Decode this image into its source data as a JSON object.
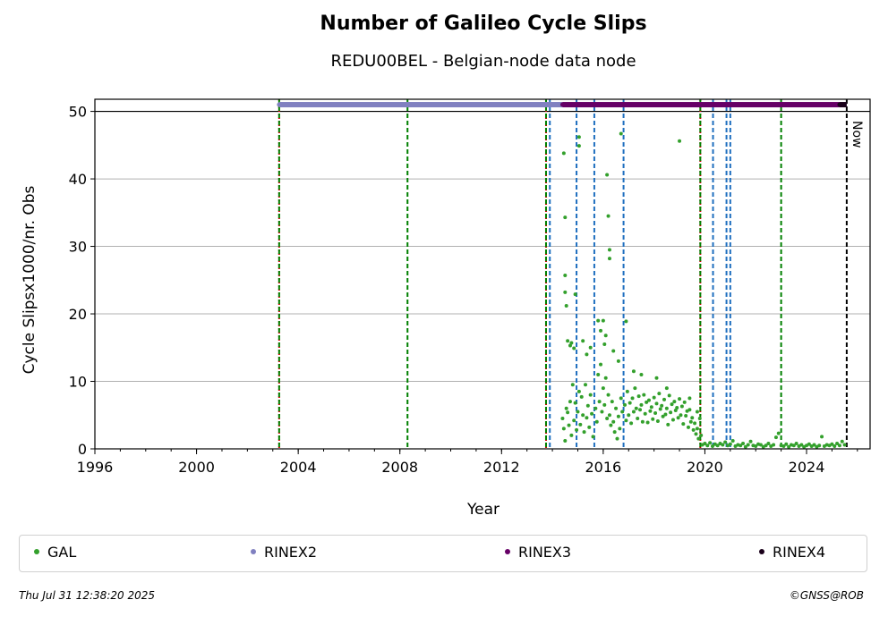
{
  "chart_data": {
    "type": "scatter",
    "title": "Number of Galileo Cycle Slips",
    "subtitle": "REDU00BEL - Belgian-node data node",
    "xlabel": "Year",
    "ylabel": "Cycle Slipsx1000/nr. Obs",
    "xlim": [
      1996,
      2026.5
    ],
    "ylim": [
      0,
      51.8
    ],
    "x_ticks": [
      1996,
      2000,
      2004,
      2008,
      2012,
      2016,
      2020,
      2024
    ],
    "y_ticks": [
      0,
      10,
      20,
      30,
      40,
      50
    ],
    "grid": "horizontal",
    "reference_line_y": 50,
    "now_label": "Now",
    "now_x": 2025.58,
    "vertical_lines": [
      {
        "x": 2003.25,
        "color": "#cc0000",
        "style": "dotted"
      },
      {
        "x": 2003.25,
        "color": "#008000",
        "style": "dashed"
      },
      {
        "x": 2008.3,
        "color": "#008000",
        "style": "dashed"
      },
      {
        "x": 2013.75,
        "color": "#cc0000",
        "style": "dotted"
      },
      {
        "x": 2013.75,
        "color": "#008000",
        "style": "dashed"
      },
      {
        "x": 2013.9,
        "color": "#1f6fbf",
        "style": "dashed"
      },
      {
        "x": 2014.95,
        "color": "#1f6fbf",
        "style": "dashed"
      },
      {
        "x": 2015.65,
        "color": "#1f6fbf",
        "style": "dashed"
      },
      {
        "x": 2016.8,
        "color": "#1f6fbf",
        "style": "dashed"
      },
      {
        "x": 2019.82,
        "color": "#cc0000",
        "style": "dotted"
      },
      {
        "x": 2019.82,
        "color": "#008000",
        "style": "dashed"
      },
      {
        "x": 2020.32,
        "color": "#1f6fbf",
        "style": "dashed"
      },
      {
        "x": 2020.85,
        "color": "#1f6fbf",
        "style": "dashed"
      },
      {
        "x": 2021.0,
        "color": "#1f6fbf",
        "style": "dashed"
      },
      {
        "x": 2023.0,
        "color": "#008000",
        "style": "dashed"
      }
    ],
    "format_periods": [
      {
        "name": "RINEX2",
        "x_start": 2003.25,
        "x_end": 2014.4,
        "y": 51,
        "color": "#8080c0"
      },
      {
        "name": "RINEX3",
        "x_start": 2014.4,
        "x_end": 2025.3,
        "y": 51,
        "color": "#660066"
      },
      {
        "name": "RINEX4",
        "x_start": 2025.3,
        "x_end": 2025.58,
        "y": 51,
        "color": "#1a001a"
      }
    ],
    "series": [
      {
        "name": "GAL",
        "color": "#33a02c",
        "points": [
          [
            2014.45,
            43.8
          ],
          [
            2014.5,
            34.3
          ],
          [
            2014.5,
            25.7
          ],
          [
            2014.5,
            23.2
          ],
          [
            2014.55,
            21.2
          ],
          [
            2014.6,
            16.0
          ],
          [
            2014.7,
            15.3
          ],
          [
            2014.75,
            15.7
          ],
          [
            2014.85,
            14.9
          ],
          [
            2014.9,
            22.9
          ],
          [
            2015.05,
            46.2
          ],
          [
            2015.05,
            44.9
          ],
          [
            2015.2,
            16.0
          ],
          [
            2015.35,
            14.0
          ],
          [
            2015.5,
            15.0
          ],
          [
            2015.8,
            19.0
          ],
          [
            2015.9,
            17.5
          ],
          [
            2016.0,
            19.0
          ],
          [
            2016.05,
            15.5
          ],
          [
            2016.1,
            16.8
          ],
          [
            2016.15,
            40.6
          ],
          [
            2016.2,
            34.5
          ],
          [
            2016.25,
            29.5
          ],
          [
            2016.25,
            28.2
          ],
          [
            2016.4,
            14.5
          ],
          [
            2016.6,
            13.0
          ],
          [
            2016.7,
            46.7
          ],
          [
            2016.9,
            18.9
          ],
          [
            2017.2,
            11.5
          ],
          [
            2017.5,
            11.0
          ],
          [
            2018.1,
            10.5
          ],
          [
            2018.5,
            9.0
          ],
          [
            2019.0,
            45.6
          ],
          [
            2019.4,
            7.5
          ],
          [
            2019.7,
            5.5
          ],
          [
            2014.4,
            4.5
          ],
          [
            2014.45,
            3.0
          ],
          [
            2014.5,
            1.2
          ],
          [
            2014.55,
            6.0
          ],
          [
            2014.6,
            5.4
          ],
          [
            2014.65,
            3.5
          ],
          [
            2014.7,
            7.0
          ],
          [
            2014.75,
            2.0
          ],
          [
            2014.8,
            9.5
          ],
          [
            2014.85,
            4.2
          ],
          [
            2014.9,
            6.8
          ],
          [
            2014.95,
            2.8
          ],
          [
            2015.0,
            5.5
          ],
          [
            2015.05,
            8.5
          ],
          [
            2015.1,
            3.6
          ],
          [
            2015.15,
            7.7
          ],
          [
            2015.2,
            5.0
          ],
          [
            2015.25,
            2.5
          ],
          [
            2015.3,
            9.5
          ],
          [
            2015.35,
            4.6
          ],
          [
            2015.4,
            6.4
          ],
          [
            2015.45,
            3.2
          ],
          [
            2015.5,
            8.0
          ],
          [
            2015.55,
            5.2
          ],
          [
            2015.6,
            1.8
          ],
          [
            2015.7,
            6.0
          ],
          [
            2015.75,
            4.0
          ],
          [
            2015.8,
            11.0
          ],
          [
            2015.85,
            7.0
          ],
          [
            2015.9,
            12.5
          ],
          [
            2015.95,
            5.5
          ],
          [
            2016.0,
            9.0
          ],
          [
            2016.05,
            6.5
          ],
          [
            2016.1,
            10.5
          ],
          [
            2016.15,
            4.5
          ],
          [
            2016.2,
            8.0
          ],
          [
            2016.25,
            5.0
          ],
          [
            2016.3,
            3.5
          ],
          [
            2016.35,
            7.0
          ],
          [
            2016.4,
            4.0
          ],
          [
            2016.45,
            2.5
          ],
          [
            2016.5,
            6.0
          ],
          [
            2016.55,
            1.5
          ],
          [
            2016.6,
            4.8
          ],
          [
            2016.65,
            3.0
          ],
          [
            2016.7,
            7.5
          ],
          [
            2016.75,
            5.5
          ],
          [
            2016.85,
            6.5
          ],
          [
            2016.9,
            4.2
          ],
          [
            2016.95,
            8.5
          ],
          [
            2017.0,
            5.0
          ],
          [
            2017.05,
            6.8
          ],
          [
            2017.1,
            3.8
          ],
          [
            2017.15,
            7.5
          ],
          [
            2017.2,
            5.5
          ],
          [
            2017.25,
            9.0
          ],
          [
            2017.3,
            6.0
          ],
          [
            2017.35,
            4.5
          ],
          [
            2017.4,
            7.8
          ],
          [
            2017.45,
            5.8
          ],
          [
            2017.5,
            6.5
          ],
          [
            2017.55,
            4.0
          ],
          [
            2017.6,
            8.0
          ],
          [
            2017.65,
            5.2
          ],
          [
            2017.7,
            6.9
          ],
          [
            2017.75,
            3.9
          ],
          [
            2017.8,
            7.2
          ],
          [
            2017.85,
            5.6
          ],
          [
            2017.9,
            6.2
          ],
          [
            2017.95,
            4.4
          ],
          [
            2018.0,
            7.6
          ],
          [
            2018.05,
            5.3
          ],
          [
            2018.1,
            6.7
          ],
          [
            2018.15,
            4.1
          ],
          [
            2018.2,
            8.2
          ],
          [
            2018.25,
            5.9
          ],
          [
            2018.3,
            6.4
          ],
          [
            2018.35,
            4.8
          ],
          [
            2018.4,
            7.3
          ],
          [
            2018.45,
            5.1
          ],
          [
            2018.5,
            6.0
          ],
          [
            2018.55,
            3.6
          ],
          [
            2018.6,
            7.9
          ],
          [
            2018.65,
            5.4
          ],
          [
            2018.7,
            6.6
          ],
          [
            2018.75,
            4.3
          ],
          [
            2018.8,
            7.0
          ],
          [
            2018.85,
            5.7
          ],
          [
            2018.9,
            6.1
          ],
          [
            2018.95,
            4.6
          ],
          [
            2019.0,
            7.4
          ],
          [
            2019.05,
            5.0
          ],
          [
            2019.1,
            6.3
          ],
          [
            2019.15,
            3.7
          ],
          [
            2019.2,
            6.9
          ],
          [
            2019.25,
            4.9
          ],
          [
            2019.3,
            5.6
          ],
          [
            2019.35,
            3.2
          ],
          [
            2019.4,
            5.8
          ],
          [
            2019.45,
            4.0
          ],
          [
            2019.5,
            4.6
          ],
          [
            2019.55,
            2.8
          ],
          [
            2019.6,
            3.8
          ],
          [
            2019.65,
            2.2
          ],
          [
            2019.7,
            3.0
          ],
          [
            2019.75,
            1.5
          ],
          [
            2019.8,
            4.5
          ],
          [
            2019.85,
            2.0
          ],
          [
            2019.9,
            0.6
          ],
          [
            2020.0,
            0.8
          ],
          [
            2020.1,
            0.5
          ],
          [
            2020.2,
            0.9
          ],
          [
            2020.3,
            0.4
          ],
          [
            2020.4,
            0.7
          ],
          [
            2020.5,
            0.5
          ],
          [
            2020.6,
            0.8
          ],
          [
            2020.7,
            0.6
          ],
          [
            2020.8,
            1.0
          ],
          [
            2020.9,
            0.5
          ],
          [
            2021.0,
            0.7
          ],
          [
            2021.1,
            1.2
          ],
          [
            2021.2,
            0.4
          ],
          [
            2021.3,
            0.6
          ],
          [
            2021.4,
            0.5
          ],
          [
            2021.5,
            0.8
          ],
          [
            2021.6,
            0.3
          ],
          [
            2021.7,
            0.6
          ],
          [
            2021.8,
            1.1
          ],
          [
            2021.9,
            0.5
          ],
          [
            2022.0,
            0.4
          ],
          [
            2022.1,
            0.7
          ],
          [
            2022.2,
            0.6
          ],
          [
            2022.3,
            0.3
          ],
          [
            2022.4,
            0.5
          ],
          [
            2022.5,
            0.8
          ],
          [
            2022.6,
            0.4
          ],
          [
            2022.7,
            0.6
          ],
          [
            2022.8,
            1.7
          ],
          [
            2022.9,
            2.3
          ],
          [
            2023.0,
            0.5
          ],
          [
            2023.1,
            0.4
          ],
          [
            2023.2,
            0.7
          ],
          [
            2023.3,
            0.3
          ],
          [
            2023.4,
            0.6
          ],
          [
            2023.5,
            0.5
          ],
          [
            2023.6,
            0.8
          ],
          [
            2023.7,
            0.4
          ],
          [
            2023.8,
            0.6
          ],
          [
            2023.9,
            0.3
          ],
          [
            2024.0,
            0.5
          ],
          [
            2024.1,
            0.7
          ],
          [
            2024.2,
            0.4
          ],
          [
            2024.3,
            0.6
          ],
          [
            2024.4,
            0.3
          ],
          [
            2024.5,
            0.5
          ],
          [
            2024.6,
            1.8
          ],
          [
            2024.7,
            0.4
          ],
          [
            2024.8,
            0.6
          ],
          [
            2024.9,
            0.5
          ],
          [
            2025.0,
            0.7
          ],
          [
            2025.1,
            0.4
          ],
          [
            2025.2,
            0.8
          ],
          [
            2025.3,
            0.5
          ],
          [
            2025.4,
            1.1
          ],
          [
            2025.5,
            0.6
          ]
        ]
      }
    ],
    "legend": {
      "placement": "bottom",
      "entries": [
        {
          "label": "GAL",
          "color": "#33a02c"
        },
        {
          "label": "RINEX2",
          "color": "#8080c0"
        },
        {
          "label": "RINEX3",
          "color": "#660066"
        },
        {
          "label": "RINEX4",
          "color": "#1a001a"
        }
      ]
    }
  },
  "footer": {
    "timestamp": "Thu Jul 31 12:38:20 2025",
    "credit": "©GNSS@ROB"
  }
}
